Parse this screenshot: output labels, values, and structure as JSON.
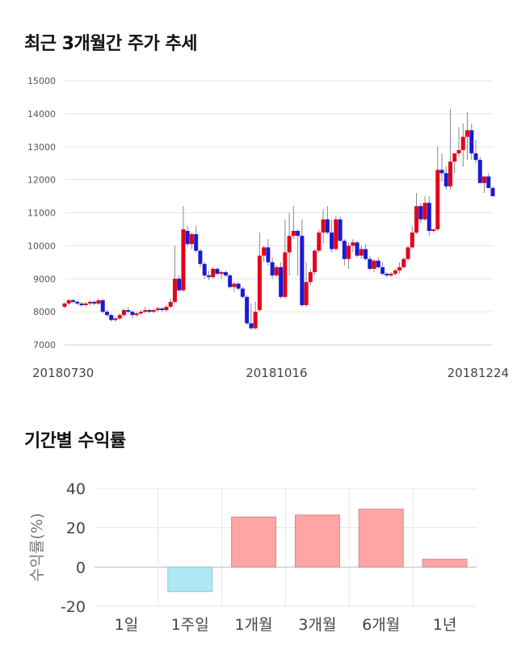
{
  "sections": {
    "price_title": "최근 3개월간 주가 추세",
    "return_title": "기간별 수익률"
  },
  "chart_data": [
    {
      "type": "candlestick",
      "title": "최근 3개월간 주가 추세",
      "ylim": [
        7000,
        15000
      ],
      "y_ticks": [
        7000,
        8000,
        9000,
        10000,
        11000,
        12000,
        13000,
        14000,
        15000
      ],
      "x_tick_labels": [
        {
          "label": "20180730",
          "index": 0
        },
        {
          "label": "20181016",
          "index": 50
        },
        {
          "label": "20181224",
          "index": 98
        }
      ],
      "grid": true,
      "colors": {
        "up": "#e3001b",
        "down": "#1a1ad4",
        "wick": "#888888"
      },
      "candles": [
        [
          8150,
          8300,
          8100,
          8250
        ],
        [
          8250,
          8400,
          8200,
          8350
        ],
        [
          8350,
          8400,
          8250,
          8300
        ],
        [
          8300,
          8350,
          8200,
          8250
        ],
        [
          8250,
          8300,
          8150,
          8200
        ],
        [
          8200,
          8300,
          8150,
          8250
        ],
        [
          8250,
          8350,
          8200,
          8300
        ],
        [
          8300,
          8350,
          8200,
          8250
        ],
        [
          8250,
          8400,
          8200,
          8350
        ],
        [
          8350,
          8400,
          7950,
          8000
        ],
        [
          8000,
          8050,
          7850,
          7900
        ],
        [
          7900,
          7950,
          7700,
          7750
        ],
        [
          7750,
          7850,
          7700,
          7800
        ],
        [
          7800,
          7950,
          7750,
          7900
        ],
        [
          7900,
          8100,
          7850,
          8050
        ],
        [
          8050,
          8150,
          7950,
          8000
        ],
        [
          8000,
          8050,
          7800,
          7900
        ],
        [
          7900,
          8000,
          7850,
          7950
        ],
        [
          7950,
          8050,
          7900,
          8000
        ],
        [
          8000,
          8150,
          7950,
          8050
        ],
        [
          8050,
          8100,
          7950,
          8000
        ],
        [
          8000,
          8100,
          7950,
          8050
        ],
        [
          8050,
          8150,
          8000,
          8100
        ],
        [
          8100,
          8150,
          8000,
          8050
        ],
        [
          8050,
          8200,
          8000,
          8150
        ],
        [
          8150,
          8400,
          8100,
          8300
        ],
        [
          8300,
          10000,
          8250,
          9000
        ],
        [
          9000,
          9100,
          8600,
          8650
        ],
        [
          8650,
          11200,
          8600,
          10500
        ],
        [
          10450,
          10600,
          10000,
          10050
        ],
        [
          10050,
          10400,
          9900,
          10350
        ],
        [
          10350,
          10600,
          9800,
          9850
        ],
        [
          9850,
          9900,
          9350,
          9450
        ],
        [
          9450,
          9500,
          9000,
          9100
        ],
        [
          9100,
          9250,
          8950,
          9050
        ],
        [
          9050,
          9350,
          9000,
          9300
        ],
        [
          9300,
          9350,
          9100,
          9150
        ],
        [
          9150,
          9250,
          9000,
          9200
        ],
        [
          9200,
          9250,
          9050,
          9100
        ],
        [
          9100,
          9150,
          8700,
          8750
        ],
        [
          8750,
          8900,
          8600,
          8850
        ],
        [
          8850,
          8900,
          8650,
          8700
        ],
        [
          8700,
          8750,
          8400,
          8450
        ],
        [
          8450,
          8500,
          7600,
          7650
        ],
        [
          7650,
          8250,
          7450,
          7500
        ],
        [
          7500,
          8300,
          7450,
          8000
        ],
        [
          8050,
          10400,
          8000,
          9700
        ],
        [
          9700,
          10000,
          9500,
          9950
        ],
        [
          9950,
          10200,
          9400,
          9500
        ],
        [
          9500,
          9650,
          9000,
          9100
        ],
        [
          9100,
          9400,
          9050,
          9350
        ],
        [
          9350,
          9500,
          8400,
          8450
        ],
        [
          8450,
          10800,
          8400,
          9800
        ],
        [
          9800,
          11000,
          9100,
          10300
        ],
        [
          10300,
          11200,
          10200,
          10450
        ],
        [
          10450,
          10500,
          9100,
          10300
        ],
        [
          10300,
          10800,
          8150,
          8200
        ],
        [
          8200,
          9500,
          8150,
          8900
        ],
        [
          8900,
          9300,
          8800,
          9200
        ],
        [
          9200,
          9900,
          9100,
          9850
        ],
        [
          9850,
          10500,
          9800,
          10400
        ],
        [
          10400,
          11100,
          10050,
          10800
        ],
        [
          10800,
          11200,
          10350,
          10400
        ],
        [
          10400,
          10800,
          9800,
          9900
        ],
        [
          9900,
          10900,
          9850,
          10800
        ],
        [
          10800,
          10900,
          10100,
          10150
        ],
        [
          10150,
          10200,
          9400,
          9600
        ],
        [
          9600,
          10100,
          9300,
          10000
        ],
        [
          10000,
          10200,
          9800,
          10100
        ],
        [
          10100,
          10150,
          9650,
          9700
        ],
        [
          9700,
          10000,
          9600,
          9900
        ],
        [
          9900,
          10050,
          9550,
          9600
        ],
        [
          9600,
          9700,
          9250,
          9300
        ],
        [
          9300,
          9600,
          9200,
          9550
        ],
        [
          9550,
          9650,
          9300,
          9350
        ],
        [
          9350,
          9500,
          9100,
          9150
        ],
        [
          9150,
          9200,
          9050,
          9100
        ],
        [
          9100,
          9200,
          9050,
          9150
        ],
        [
          9150,
          9300,
          9100,
          9250
        ],
        [
          9250,
          9500,
          9150,
          9350
        ],
        [
          9350,
          9650,
          9300,
          9600
        ],
        [
          9600,
          10000,
          9550,
          9950
        ],
        [
          9950,
          10600,
          9900,
          10400
        ],
        [
          10400,
          11600,
          10350,
          11200
        ],
        [
          11200,
          11300,
          10700,
          10800
        ],
        [
          10800,
          11500,
          10750,
          11300
        ],
        [
          11300,
          11500,
          10300,
          10450
        ],
        [
          10450,
          10500,
          10400,
          10500
        ],
        [
          10500,
          13000,
          10450,
          12300
        ],
        [
          12300,
          12800,
          11950,
          12200
        ],
        [
          12200,
          12400,
          11700,
          11800
        ],
        [
          11800,
          14150,
          11700,
          12550
        ],
        [
          12550,
          12800,
          12200,
          12800
        ],
        [
          12800,
          13600,
          12700,
          12900
        ],
        [
          12900,
          13700,
          12400,
          13300
        ],
        [
          13300,
          14050,
          12600,
          13500
        ],
        [
          13500,
          13700,
          12600,
          12800
        ],
        [
          12800,
          13200,
          12500,
          12600
        ],
        [
          12600,
          12700,
          11900,
          11900
        ],
        [
          11900,
          12100,
          11600,
          12100
        ],
        [
          12100,
          12200,
          11750,
          11750
        ],
        [
          11750,
          11800,
          11500,
          11500
        ]
      ]
    },
    {
      "type": "bar",
      "categories": [
        "1일",
        "1주일",
        "1개월",
        "3개월",
        "6개월",
        "1년"
      ],
      "values": [
        0,
        -12.5,
        25.5,
        26.5,
        29.5,
        4.0
      ],
      "ylabel": "수익률(%)",
      "ylim": [
        -20,
        40
      ],
      "y_ticks": [
        -20,
        0,
        20,
        40
      ],
      "grid": true,
      "colors": {
        "positive": "#ffa5a5",
        "positive_edge": "#d98a8a",
        "negative": "#aee8f4",
        "negative_edge": "#8fc7d6"
      }
    }
  ]
}
